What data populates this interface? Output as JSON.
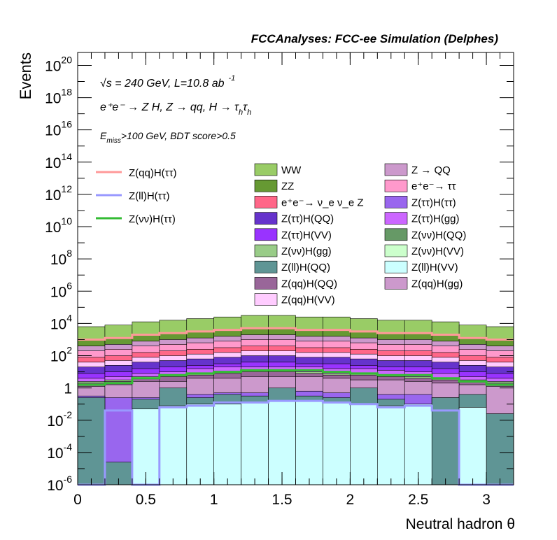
{
  "chart_data": {
    "type": "bar",
    "title": "FCCAnalyses: FCC-ee Simulation (Delphes)",
    "xlabel": "Neutral hadron θ",
    "ylabel": "Events",
    "xlim": [
      0,
      3.2
    ],
    "ylim_log10": [
      -6,
      20.8
    ],
    "y_scale": "log",
    "x_ticks": [
      {
        "v": 0,
        "label": "0"
      },
      {
        "v": 0.5,
        "label": "0.5"
      },
      {
        "v": 1,
        "label": "1"
      },
      {
        "v": 1.5,
        "label": "1.5"
      },
      {
        "v": 2,
        "label": "2"
      },
      {
        "v": 2.5,
        "label": "2.5"
      },
      {
        "v": 3,
        "label": "3"
      }
    ],
    "y_ticks": [
      {
        "exp": -6,
        "base": "10",
        "sup": "-6"
      },
      {
        "exp": -4,
        "base": "10",
        "sup": "-4"
      },
      {
        "exp": -2,
        "base": "10",
        "sup": "-2"
      },
      {
        "exp": 0,
        "base": "1",
        "sup": ""
      },
      {
        "exp": 2,
        "base": "10",
        "sup": "2"
      },
      {
        "exp": 4,
        "base": "10",
        "sup": "4"
      },
      {
        "exp": 6,
        "base": "10",
        "sup": "6"
      },
      {
        "exp": 8,
        "base": "10",
        "sup": "8"
      },
      {
        "exp": 10,
        "base": "10",
        "sup": "10"
      },
      {
        "exp": 12,
        "base": "10",
        "sup": "12"
      },
      {
        "exp": 14,
        "base": "10",
        "sup": "14"
      },
      {
        "exp": 16,
        "base": "10",
        "sup": "16"
      },
      {
        "exp": 18,
        "base": "10",
        "sup": "18"
      },
      {
        "exp": 20,
        "base": "10",
        "sup": "20"
      }
    ],
    "annotations": {
      "sqrt_s": "√s = 240 GeV, L=10.8 ab",
      "sqrt_s_sup": "-1",
      "process": "e⁺e⁻ → Z H, Z → qq, H → τ",
      "process_sub1": "h",
      "process_tau2": "τ",
      "process_sub2": "h",
      "cut_pre": "E",
      "cut_sub": "miss",
      "cut_post": ">100 GeV, BDT score>0.5"
    },
    "bin_edges": [
      0,
      0.2,
      0.4,
      0.6,
      0.8,
      1.0,
      1.2,
      1.4,
      1.6,
      1.8,
      2.0,
      2.2,
      2.4,
      2.6,
      2.8,
      3.0,
      3.2
    ],
    "stack_order_bottom_to_top": [
      "Z(ll)H(VV)",
      "Z(ll)H(QQ)",
      "Z(ττ)H(ττ)",
      "Z(qq)H(gg)",
      "Z(qq)H(QQ)",
      "Z(νν)H(gg)",
      "Z(ττ)H(gg)",
      "Z(ττ)H(VV)",
      "Z(ττ)H(QQ)",
      "Z(qq)H(VV)",
      "e⁺e⁻→ ν_e ν_e Z",
      "e⁺e⁻→ ττ",
      "Z → QQ",
      "ZZ",
      "WW"
    ],
    "stack": [
      {
        "name": "Z(ll)H(VV)",
        "color": "#ccffff",
        "top_log10": [
          -6,
          -6,
          -1.3,
          -1.1,
          -1.0,
          -1.0,
          -0.9,
          -0.8,
          -0.8,
          -0.9,
          -1.0,
          -1.1,
          -1.0,
          -6,
          -1.2,
          -6
        ]
      },
      {
        "name": "Z(ll)H(QQ)",
        "color": "#5f9595",
        "top_log10": [
          -0.6,
          -4.6,
          -0.7,
          0.0,
          -0.6,
          -0.4,
          -0.5,
          0.0,
          -0.5,
          -0.6,
          0.0,
          -0.7,
          -1.1,
          -0.6,
          -0.4,
          -1.6
        ]
      },
      {
        "name": "Z(ττ)H(ττ)",
        "color": "#9966ee",
        "top_log10": [
          -0.5,
          -0.6,
          -0.6,
          -0.4,
          -0.4,
          -0.3,
          -0.3,
          -0.3,
          -0.2,
          -0.3,
          -0.4,
          -0.4,
          -0.4,
          -0.6,
          -0.5,
          -1.6
        ]
      },
      {
        "name": "Z(qq)H(gg)",
        "color": "#cc99cc",
        "top_log10": [
          0.1,
          0.2,
          0.4,
          0.4,
          0.6,
          0.6,
          0.7,
          0.7,
          0.7,
          0.6,
          0.5,
          0.5,
          0.4,
          0.3,
          0.2,
          0.1
        ]
      },
      {
        "name": "Z(qq)H(QQ)",
        "color": "#996699",
        "top_log10": [
          0.3,
          0.4,
          0.6,
          0.7,
          0.8,
          0.9,
          1.0,
          1.0,
          0.9,
          0.8,
          0.8,
          0.7,
          0.6,
          0.5,
          0.4,
          0.3
        ]
      },
      {
        "name": "Z(νν)H(gg)",
        "color": "#99cc88",
        "top_log10": [
          0.4,
          0.5,
          0.7,
          0.8,
          0.9,
          1.0,
          1.1,
          1.1,
          1.0,
          0.9,
          0.9,
          0.8,
          0.7,
          0.6,
          0.5,
          0.4
        ]
      },
      {
        "name": "Z(ττ)H(gg)",
        "color": "#cc66ff",
        "top_log10": [
          0.6,
          0.7,
          0.9,
          1.0,
          1.2,
          1.3,
          1.3,
          1.3,
          1.3,
          1.2,
          1.2,
          1.1,
          1.0,
          0.9,
          0.7,
          0.6
        ]
      },
      {
        "name": "Z(ττ)H(VV)",
        "color": "#9933ff",
        "top_log10": [
          0.9,
          1.0,
          1.2,
          1.3,
          1.4,
          1.5,
          1.6,
          1.6,
          1.5,
          1.5,
          1.4,
          1.3,
          1.3,
          1.2,
          1.0,
          0.9
        ]
      },
      {
        "name": "Z(ττ)H(QQ)",
        "color": "#6633cc",
        "top_log10": [
          1.3,
          1.4,
          1.6,
          1.7,
          1.8,
          1.9,
          2.0,
          2.0,
          1.9,
          1.9,
          1.8,
          1.7,
          1.7,
          1.6,
          1.4,
          1.3
        ]
      },
      {
        "name": "Z(qq)H(VV)",
        "color": "#ffccff",
        "top_log10": [
          1.6,
          1.7,
          1.9,
          2.0,
          2.1,
          2.2,
          2.3,
          2.3,
          2.2,
          2.2,
          2.1,
          2.0,
          2.0,
          1.9,
          1.7,
          1.6
        ]
      },
      {
        "name": "e⁺e⁻→ ν_e ν_e Z",
        "color": "#ff6688",
        "top_log10": [
          1.9,
          2.0,
          2.2,
          2.3,
          2.4,
          2.5,
          2.6,
          2.6,
          2.5,
          2.5,
          2.4,
          2.3,
          2.3,
          2.2,
          2.0,
          1.9
        ]
      },
      {
        "name": "e⁺e⁻→ ττ",
        "color": "#ff99cc",
        "top_log10": [
          2.3,
          2.4,
          2.6,
          2.7,
          2.8,
          2.9,
          3.0,
          3.0,
          2.9,
          2.9,
          2.8,
          2.7,
          2.7,
          2.6,
          2.4,
          2.3
        ]
      },
      {
        "name": "Z → QQ",
        "color": "#cc99cc",
        "top_log10": [
          2.6,
          2.7,
          2.9,
          3.0,
          3.1,
          3.2,
          3.3,
          3.3,
          3.2,
          3.2,
          3.1,
          3.0,
          3.0,
          2.9,
          2.7,
          2.6
        ]
      },
      {
        "name": "ZZ",
        "color": "#669933",
        "top_log10": [
          3.0,
          3.1,
          3.3,
          3.4,
          3.5,
          3.6,
          3.7,
          3.7,
          3.6,
          3.6,
          3.5,
          3.4,
          3.4,
          3.3,
          3.1,
          3.0
        ]
      },
      {
        "name": "WW",
        "color": "#99cc66",
        "top_log10": [
          3.8,
          3.9,
          4.1,
          4.2,
          4.3,
          4.4,
          4.5,
          4.5,
          4.4,
          4.4,
          4.3,
          4.2,
          4.2,
          4.1,
          3.9,
          3.8
        ]
      }
    ],
    "signals": [
      {
        "name": "Z(qq)H(ττ)",
        "color": "#ff9999",
        "log10": [
          3.0,
          3.1,
          3.3,
          3.4,
          3.5,
          3.6,
          3.7,
          3.7,
          3.6,
          3.6,
          3.5,
          3.4,
          3.4,
          3.3,
          3.1,
          3.0
        ]
      },
      {
        "name": "Z(ll)H(ττ)",
        "color": "#9999ff",
        "log10": [
          -6,
          -1.4,
          -6,
          -1.2,
          -1.1,
          -0.9,
          -0.9,
          -0.8,
          -0.8,
          -0.9,
          -1.0,
          -1.2,
          -1.1,
          -1.4,
          -6,
          -6
        ]
      },
      {
        "name": "Z(νν)H(ττ)",
        "color": "#33bb33",
        "log10": [
          0.2,
          0.3,
          0.6,
          0.8,
          0.9,
          1.0,
          1.1,
          1.1,
          1.1,
          1.0,
          0.9,
          0.8,
          0.8,
          0.6,
          0.4,
          0.2
        ]
      }
    ],
    "legend": {
      "placement": "top, three columns",
      "signals": [
        {
          "label": "Z(qq)H(ττ)"
        },
        {
          "label": "Z(ll)H(ττ)"
        },
        {
          "label": "Z(νν)H(ττ)"
        }
      ],
      "bkg_col1": [
        {
          "label": "WW",
          "color": "#99cc66"
        },
        {
          "label": "ZZ",
          "color": "#669933"
        },
        {
          "label": "e⁺e⁻→ ν_e ν_e Z",
          "color": "#ff6688"
        },
        {
          "label": "Z(ττ)H(QQ)",
          "color": "#6633cc"
        },
        {
          "label": "Z(ττ)H(VV)",
          "color": "#9933ff"
        },
        {
          "label": "Z(νν)H(gg)",
          "color": "#99cc88"
        },
        {
          "label": "Z(ll)H(QQ)",
          "color": "#5f9595"
        },
        {
          "label": "Z(qq)H(QQ)",
          "color": "#996699"
        },
        {
          "label": "Z(qq)H(VV)",
          "color": "#ffccff"
        }
      ],
      "bkg_col2": [
        {
          "label": "Z → QQ",
          "color": "#cc99cc"
        },
        {
          "label": "e⁺e⁻→ ττ",
          "color": "#ff99cc"
        },
        {
          "label": "Z(ττ)H(ττ)",
          "color": "#9966ee"
        },
        {
          "label": "Z(ττ)H(gg)",
          "color": "#cc66ff"
        },
        {
          "label": "Z(νν)H(QQ)",
          "color": "#669966"
        },
        {
          "label": "Z(νν)H(VV)",
          "color": "#ccffcc"
        },
        {
          "label": "Z(ll)H(VV)",
          "color": "#ccffff"
        },
        {
          "label": "Z(qq)H(gg)",
          "color": "#cc99cc"
        }
      ]
    }
  }
}
